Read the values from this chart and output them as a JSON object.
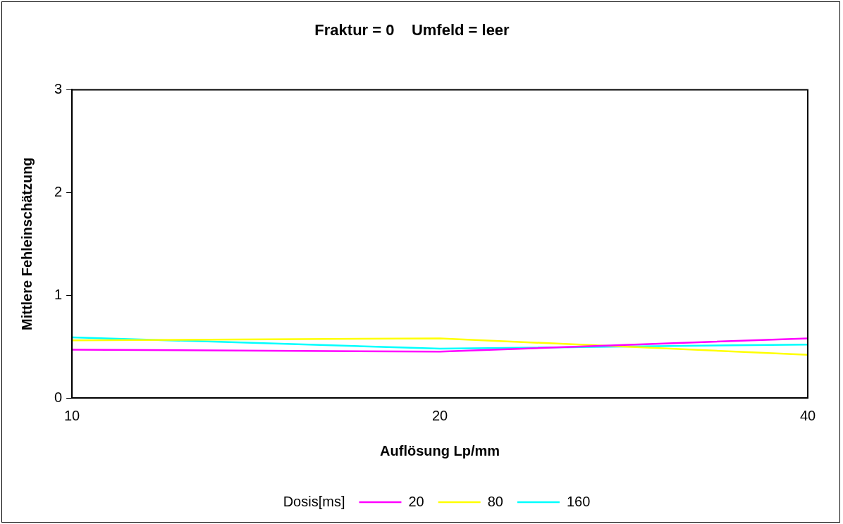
{
  "chart_data": {
    "type": "line",
    "title": "Fraktur = 0    Umfeld = leer",
    "xlabel": "Auflösung Lp/mm",
    "ylabel": "Mittlere Fehleinschätzung",
    "legend_title": "Dosis[ms]",
    "categories": [
      "10",
      "20",
      "40"
    ],
    "series": [
      {
        "name": "20",
        "color": "#ff00ff",
        "values": [
          0.47,
          0.45,
          0.58
        ]
      },
      {
        "name": "80",
        "color": "#ffff00",
        "values": [
          0.56,
          0.58,
          0.42
        ]
      },
      {
        "name": "160",
        "color": "#00ffff",
        "values": [
          0.59,
          0.48,
          0.52
        ]
      }
    ],
    "ylim": [
      0,
      3
    ],
    "yticks": [
      0,
      1,
      2,
      3
    ],
    "grid": false,
    "legend": "bottom",
    "marker": "none",
    "line_style": "solid"
  }
}
